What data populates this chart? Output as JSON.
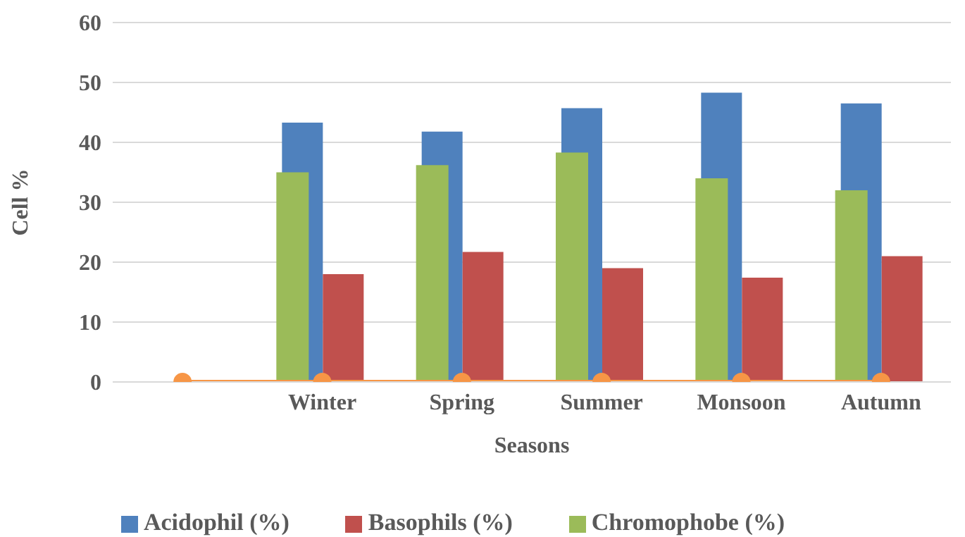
{
  "chart_data": {
    "type": "bar",
    "xlabel": "Seasons",
    "ylabel": "Cell %",
    "categories": [
      null,
      "Winter",
      "Spring",
      "Summer",
      "Monsoon",
      "Autumn"
    ],
    "series": [
      {
        "name": "Acidophil (%)",
        "color": "#4f81bd",
        "values": [
          null,
          43.3,
          41.8,
          45.7,
          48.3,
          46.5
        ]
      },
      {
        "name": "Basophils (%)",
        "color": "#c0504d",
        "values": [
          null,
          18.0,
          21.7,
          19.0,
          17.4,
          21.0
        ]
      },
      {
        "name": "Chromophobe (%)",
        "color": "#9bbb59",
        "values": [
          null,
          35.0,
          36.2,
          38.3,
          34.0,
          32.0
        ]
      },
      {
        "type": "line",
        "color": "#f79646",
        "values": [
          0,
          0,
          0,
          0,
          0,
          0
        ],
        "marker": "circle"
      }
    ],
    "ylim": [
      0,
      60
    ],
    "yticks": [
      0,
      10,
      20,
      30,
      40,
      50,
      60
    ],
    "grid": "y",
    "legend": "bottom"
  }
}
